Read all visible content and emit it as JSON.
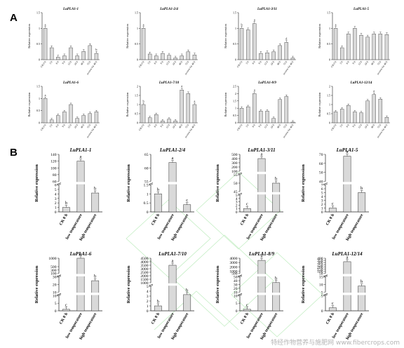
{
  "section_labels": [
    "A",
    "B"
  ],
  "watermark": "特经作物营养与施肥网 www.fibercrops.com",
  "chart_data": [
    {
      "type": "bar",
      "panel": "A",
      "title": "LuPLA1-1",
      "ylabel": "Relative expression",
      "categories": [
        "CK 0 h",
        "3 h",
        "6 h",
        "9 h",
        "12 h",
        "24 h",
        "48 h",
        "72 h",
        "recover for 48 h"
      ],
      "values": [
        1.0,
        0.38,
        0.08,
        0.12,
        0.38,
        0.12,
        0.26,
        0.45,
        0.2
      ],
      "letters": [
        "a",
        "",
        "",
        "",
        "",
        "",
        "",
        "",
        "b"
      ],
      "ylim": [
        0,
        1.5
      ],
      "yticks": [
        0,
        0.5,
        1.0,
        1.5
      ]
    },
    {
      "type": "bar",
      "panel": "A",
      "title": "LuPLA1-2/4",
      "ylabel": "Relative expression",
      "categories": [
        "CK 0 h",
        "3 h",
        "6 h",
        "9 h",
        "12 h",
        "24 h",
        "48 h",
        "72 h",
        "recover for 48 h"
      ],
      "values": [
        1.0,
        0.18,
        0.12,
        0.2,
        0.14,
        0.05,
        0.12,
        0.25,
        0.15
      ],
      "letters": [
        "a",
        "",
        "",
        "",
        "",
        "",
        "",
        "",
        ""
      ],
      "ylim": [
        0,
        1.5
      ],
      "yticks": [
        0,
        0.5,
        1.0,
        1.5
      ]
    },
    {
      "type": "bar",
      "panel": "A",
      "title": "LuPLA1-3/11",
      "ylabel": "Relative expression",
      "categories": [
        "CK 0 h",
        "3 h",
        "6 h",
        "9 h",
        "12 h",
        "24 h",
        "48 h",
        "72 h",
        "recover for 48 h"
      ],
      "values": [
        1.0,
        0.95,
        1.15,
        0.2,
        0.22,
        0.25,
        0.45,
        0.55,
        0.05
      ],
      "letters": [
        "b",
        "",
        "a",
        "",
        "",
        "",
        "",
        "d",
        ""
      ],
      "ylim": [
        0,
        1.5
      ],
      "yticks": [
        0,
        0.5,
        1.0,
        1.5
      ]
    },
    {
      "type": "bar",
      "panel": "A",
      "title": "LuPLA1-5",
      "ylabel": "Relative expression",
      "categories": [
        "CK 0 h",
        "3 h",
        "6 h",
        "9 h",
        "12 h",
        "24 h",
        "48 h",
        "72 h",
        "recover for 48 h"
      ],
      "values": [
        1.0,
        0.38,
        0.82,
        1.0,
        0.78,
        0.72,
        0.82,
        0.82,
        0.8
      ],
      "letters": [
        "a",
        "",
        "",
        "",
        "",
        "",
        "",
        "",
        ""
      ],
      "ylim": [
        0,
        1.5
      ],
      "yticks": [
        0,
        0.5,
        1.0,
        1.5
      ]
    },
    {
      "type": "bar",
      "panel": "A",
      "title": "LuPLA1-6",
      "ylabel": "Relative expression",
      "categories": [
        "CK 0 h",
        "3 h",
        "6 h",
        "9 h",
        "12 h",
        "24 h",
        "48 h",
        "72 h",
        "recover for 48 h"
      ],
      "values": [
        1.0,
        0.12,
        0.3,
        0.45,
        0.75,
        0.18,
        0.3,
        0.38,
        0.45
      ],
      "letters": [
        "a",
        "",
        "",
        "",
        "",
        "",
        "",
        "",
        ""
      ],
      "ylim": [
        0,
        1.5
      ],
      "yticks": [
        0,
        0.5,
        1.0,
        1.5
      ]
    },
    {
      "type": "bar",
      "panel": "A",
      "title": "LuPLA1-7/10",
      "ylabel": "Relative expression",
      "categories": [
        "CK 0 h",
        "3 h",
        "6 h",
        "9 h",
        "12 h",
        "24 h",
        "48 h",
        "72 h",
        "recover for 48 h"
      ],
      "values": [
        1.0,
        0.28,
        0.45,
        0.1,
        0.2,
        0.1,
        1.8,
        1.6,
        1.0
      ],
      "letters": [
        "b",
        "",
        "",
        "",
        "",
        "",
        "a",
        "",
        "a"
      ],
      "ylim": [
        0,
        2.0
      ],
      "yticks": [
        0,
        0.5,
        1.0,
        1.5,
        2.0
      ]
    },
    {
      "type": "bar",
      "panel": "A",
      "title": "LuPLA1-8/9",
      "ylabel": "Relative expression",
      "categories": [
        "CK 0 h",
        "3 h",
        "6 h",
        "9 h",
        "12 h",
        "24 h",
        "48 h",
        "72 h",
        "recover for 48 h"
      ],
      "values": [
        1.0,
        1.1,
        2.0,
        0.8,
        0.8,
        0.3,
        1.6,
        1.8,
        0.05
      ],
      "letters": [
        "",
        "",
        "a",
        "",
        "",
        "",
        "",
        "",
        ""
      ],
      "ylim": [
        0,
        2.5
      ],
      "yticks": [
        0,
        0.5,
        1.0,
        1.5,
        2.0,
        2.5
      ]
    },
    {
      "type": "bar",
      "panel": "A",
      "title": "LuPLA1-12/14",
      "ylabel": "Relative expression",
      "categories": [
        "CK 0 h",
        "3 h",
        "6 h",
        "9 h",
        "12 h",
        "24 h",
        "48 h",
        "72 h",
        "recover for 48 h"
      ],
      "values": [
        0.6,
        0.75,
        0.95,
        0.6,
        0.55,
        1.2,
        1.55,
        1.3,
        0.3
      ],
      "letters": [
        "",
        "",
        "",
        "",
        "",
        "",
        "a",
        "",
        ""
      ],
      "ylim": [
        0,
        2.0
      ],
      "yticks": [
        0,
        0.5,
        1.0,
        1.5,
        2.0
      ]
    },
    {
      "type": "bar",
      "panel": "B",
      "title": "LuPLA1-1",
      "ylabel": "Relative expression",
      "categories": [
        "CK 0 h",
        "low temperature",
        "high temperature"
      ],
      "values": [
        1,
        120,
        4.2
      ],
      "letters": [
        "b",
        "a",
        "b"
      ],
      "segments": [
        {
          "range": [
            0,
            6
          ],
          "ticks": [
            0,
            1,
            2,
            3,
            4,
            5,
            6
          ]
        },
        {
          "range": [
            60,
            140
          ],
          "ticks": [
            60,
            80,
            100,
            120,
            140
          ]
        }
      ]
    },
    {
      "type": "bar",
      "panel": "B",
      "title": "LuPLA1-2/4",
      "ylabel": "Relative expression",
      "categories": [
        "CK 0 h",
        "low temperature",
        "high temperature"
      ],
      "values": [
        1,
        62,
        0.4
      ],
      "letters": [
        "b",
        "a",
        "c"
      ],
      "segments": [
        {
          "range": [
            0,
            1.5
          ],
          "ticks": [
            0,
            0.5,
            1.0,
            1.5
          ]
        },
        {
          "range": [
            55,
            65
          ],
          "ticks": [
            55,
            60,
            65
          ]
        }
      ]
    },
    {
      "type": "bar",
      "panel": "B",
      "title": "LuPLA1-3/11",
      "ylabel": "Relative expression",
      "categories": [
        "CK 0 h",
        "low temperature",
        "high temperature"
      ],
      "values": [
        1,
        400,
        50
      ],
      "letters": [
        "c",
        "a",
        "b"
      ],
      "segments": [
        {
          "range": [
            0,
            5
          ],
          "ticks": [
            0,
            1,
            2,
            3,
            4,
            5
          ]
        },
        {
          "range": [
            45,
            55
          ],
          "ticks": [
            45,
            50,
            55
          ]
        },
        {
          "range": [
            100,
            500
          ],
          "ticks": [
            100,
            200,
            300,
            400,
            500
          ]
        }
      ]
    },
    {
      "type": "bar",
      "panel": "B",
      "title": "LuPLA1-5",
      "ylabel": "Relative expression",
      "categories": [
        "CK 0 h",
        "low temperature",
        "high temperature"
      ],
      "values": [
        1,
        68,
        5
      ],
      "letters": [
        "c",
        "a",
        "b"
      ],
      "segments": [
        {
          "range": [
            0,
            7
          ],
          "ticks": [
            0,
            1,
            2,
            3,
            4,
            5,
            6,
            7
          ]
        },
        {
          "range": [
            40,
            70
          ],
          "ticks": [
            40,
            50,
            60,
            70
          ]
        }
      ]
    },
    {
      "type": "bar",
      "panel": "B",
      "title": "LuPLA1-6",
      "ylabel": "Relative expression",
      "categories": [
        "CK 0 h",
        "low temperature",
        "high temperature"
      ],
      "values": [
        1,
        1000,
        25
      ],
      "letters": [
        "c",
        "a",
        "b"
      ],
      "segments": [
        {
          "range": [
            0,
            10
          ],
          "ticks": [
            0,
            5,
            10
          ]
        },
        {
          "range": [
            10,
            30
          ],
          "ticks": [
            10,
            20,
            30
          ]
        },
        {
          "range": [
            100,
            1000
          ],
          "ticks": [
            100,
            300,
            500,
            1000
          ]
        }
      ]
    },
    {
      "type": "bar",
      "panel": "B",
      "title": "LuPLA1-7/10",
      "ylabel": "Relative expression",
      "categories": [
        "CK 0 h",
        "low temperature",
        "high temperature"
      ],
      "values": [
        1,
        3500,
        3.3
      ],
      "letters": [
        "b",
        "a",
        "b"
      ],
      "segments": [
        {
          "range": [
            0,
            5
          ],
          "ticks": [
            0,
            1,
            2,
            3,
            4,
            5
          ]
        },
        {
          "range": [
            1000,
            4500
          ],
          "ticks": [
            1000,
            1500,
            2000,
            2500,
            3000,
            3500,
            4000,
            4500
          ]
        }
      ]
    },
    {
      "type": "bar",
      "panel": "B",
      "title": "LuPLA1-8/9",
      "ylabel": "Relative expression",
      "categories": [
        "CK 0 h",
        "low temperature",
        "high temperature"
      ],
      "values": [
        1,
        3500,
        35
      ],
      "letters": [
        "c",
        "a",
        "b"
      ],
      "segments": [
        {
          "range": [
            0,
            10
          ],
          "ticks": [
            0,
            5,
            10
          ]
        },
        {
          "range": [
            10,
            50
          ],
          "ticks": [
            10,
            20,
            30,
            40,
            50
          ]
        },
        {
          "range": [
            500,
            4000
          ],
          "ticks": [
            500,
            1000,
            2000,
            3000,
            4000
          ]
        }
      ]
    },
    {
      "type": "bar",
      "panel": "B",
      "title": "LuPLA1-12/14",
      "ylabel": "Relative expression",
      "categories": [
        "CK 0 h",
        "low temperature",
        "high temperature"
      ],
      "values": [
        1,
        320,
        9
      ],
      "letters": [
        "c",
        "a",
        "b"
      ],
      "segments": [
        {
          "range": [
            0,
            5
          ],
          "ticks": [
            0,
            5
          ]
        },
        {
          "range": [
            5,
            15
          ],
          "ticks": [
            5,
            10,
            15
          ]
        },
        {
          "range": [
            50,
            400
          ],
          "ticks": [
            50,
            100,
            150,
            200,
            250,
            300,
            350,
            400
          ]
        }
      ]
    }
  ]
}
